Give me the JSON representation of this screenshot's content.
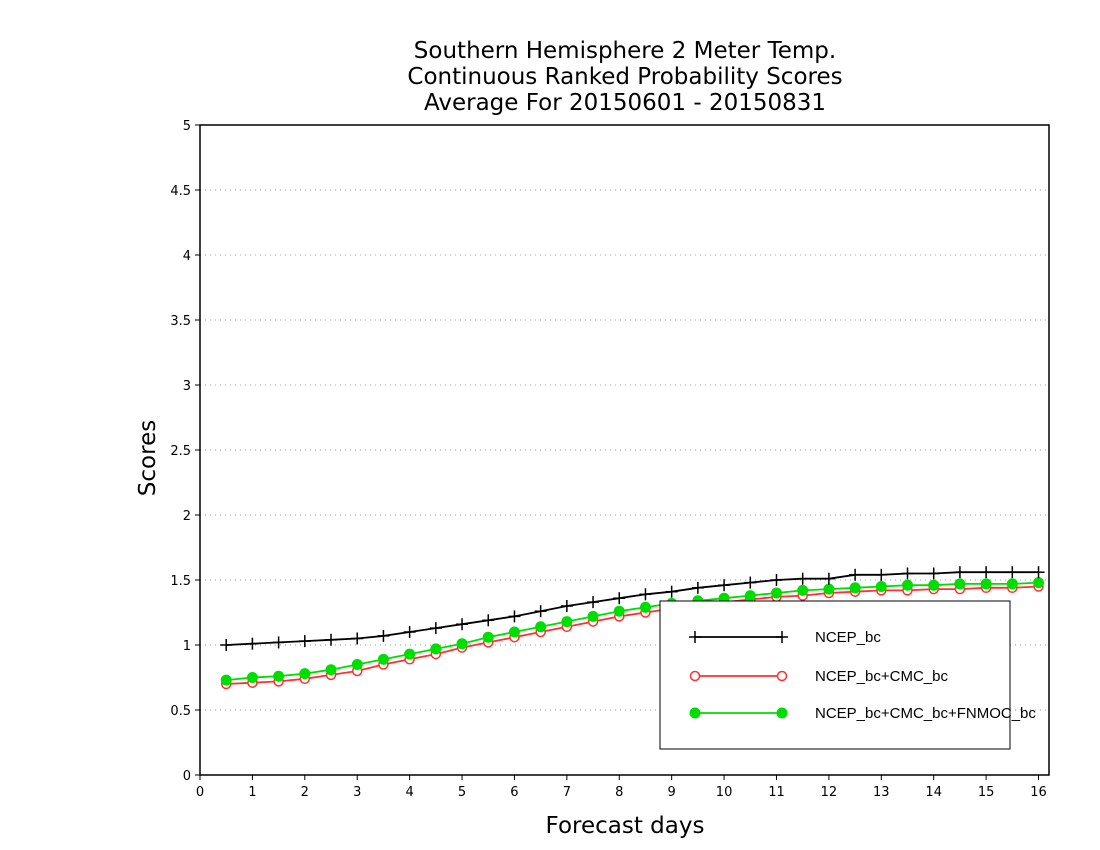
{
  "chart_data": {
    "type": "line",
    "title": [
      "Southern Hemisphere 2 Meter Temp.",
      "Continuous Ranked Probability Scores",
      "Average For 20150601 - 20150831"
    ],
    "xlabel": "Forecast days",
    "ylabel": "Scores",
    "xlim": [
      0,
      16.2
    ],
    "ylim": [
      0,
      5
    ],
    "x_ticks": [
      0,
      1,
      2,
      3,
      4,
      5,
      6,
      7,
      8,
      9,
      10,
      11,
      12,
      13,
      14,
      15,
      16
    ],
    "y_ticks": [
      0,
      0.5,
      1,
      1.5,
      2,
      2.5,
      3,
      3.5,
      4,
      4.5,
      5
    ],
    "y_tick_labels": [
      "0",
      "0.5",
      "1",
      "1.5",
      "2",
      "2.5",
      "3",
      "3.5",
      "4",
      "4.5",
      "5"
    ],
    "grid": "horizontal-dotted",
    "legend_position": "bottom-right",
    "x": [
      0.5,
      1,
      1.5,
      2,
      2.5,
      3,
      3.5,
      4,
      4.5,
      5,
      5.5,
      6,
      6.5,
      7,
      7.5,
      8,
      8.5,
      9,
      9.5,
      10,
      10.5,
      11,
      11.5,
      12,
      12.5,
      13,
      13.5,
      14,
      14.5,
      15,
      15.5,
      16
    ],
    "series": [
      {
        "name": "NCEP_bc",
        "color": "#000000",
        "marker": "plus",
        "values": [
          1.0,
          1.01,
          1.02,
          1.03,
          1.04,
          1.05,
          1.07,
          1.1,
          1.13,
          1.16,
          1.19,
          1.22,
          1.26,
          1.3,
          1.33,
          1.36,
          1.39,
          1.41,
          1.44,
          1.46,
          1.48,
          1.5,
          1.51,
          1.51,
          1.54,
          1.54,
          1.55,
          1.55,
          1.56,
          1.56,
          1.56,
          1.56
        ]
      },
      {
        "name": "NCEP_bc+CMC_bc",
        "color": "#ff3030",
        "marker": "open-circle",
        "values": [
          0.7,
          0.71,
          0.72,
          0.74,
          0.77,
          0.8,
          0.85,
          0.89,
          0.93,
          0.98,
          1.02,
          1.06,
          1.1,
          1.14,
          1.18,
          1.22,
          1.25,
          1.28,
          1.31,
          1.33,
          1.35,
          1.37,
          1.38,
          1.4,
          1.41,
          1.42,
          1.42,
          1.43,
          1.43,
          1.44,
          1.44,
          1.45
        ]
      },
      {
        "name": "NCEP_bc+CMC_bc+FNMOC_bc",
        "color": "#00dd00",
        "marker": "filled-circle",
        "values": [
          0.73,
          0.75,
          0.76,
          0.78,
          0.81,
          0.85,
          0.89,
          0.93,
          0.97,
          1.01,
          1.06,
          1.1,
          1.14,
          1.18,
          1.22,
          1.26,
          1.29,
          1.32,
          1.34,
          1.36,
          1.38,
          1.4,
          1.42,
          1.43,
          1.44,
          1.45,
          1.46,
          1.46,
          1.47,
          1.47,
          1.47,
          1.48
        ]
      }
    ]
  }
}
